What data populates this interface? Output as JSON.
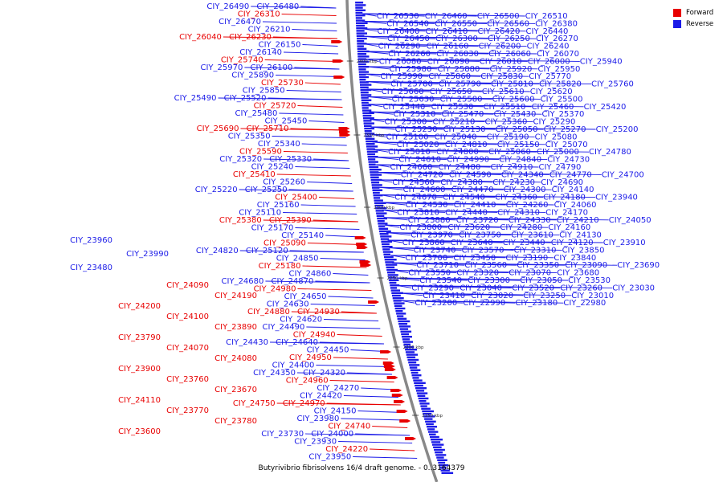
{
  "caption": "Butyrivibrio fibrisolvens 16/4 draft genome. - 0..3164379",
  "legend": {
    "forward_label": "Forward",
    "reverse_label": "Reverse"
  },
  "colors": {
    "forward": "#e80000",
    "reverse": "#1a1ae8",
    "backbone": "#888888"
  },
  "scale_marks": [
    "2400 kbp",
    "2350 kbp",
    "2300 kbp",
    "2250 kbp",
    "2200 kbp",
    "2150 kbp"
  ],
  "forward_labels": [
    "CIY_26310",
    "CIY_26230",
    "CIY_26040",
    "CIY_25740",
    "CIY_25730",
    "CIY_25720",
    "CIY_25710",
    "CIY_25690",
    "CIY_25590",
    "CIY_25410",
    "CIY_25400",
    "CIY_25390",
    "CIY_25380",
    "CIY_25090",
    "CIY_25180",
    "CIY_24980",
    "CIY_24930",
    "CIY_24880",
    "CIY_24940",
    "CIY_24950",
    "CIY_24960",
    "CIY_24970",
    "CIY_24750",
    "CIY_24740",
    "CIY_24220",
    "CIY_24090",
    "CIY_24190",
    "CIY_24200",
    "CIY_24100",
    "CIY_23890",
    "CIY_23790",
    "CIY_24070",
    "CIY_24080",
    "CIY_23900",
    "CIY_23760",
    "CIY_23670",
    "CIY_24110",
    "CIY_23770",
    "CIY_23780",
    "CIY_23600"
  ],
  "reverse_left_labels": [
    "CIY_26480",
    "CIY_26490",
    "CIY_26470",
    "CIY_26210",
    "CIY_26150",
    "CIY_26140",
    "CIY_26100",
    "CIY_25970",
    "CIY_25890",
    "CIY_25850",
    "CIY_25520",
    "CIY_25490",
    "CIY_25480",
    "CIY_25450",
    "CIY_25350",
    "CIY_25340",
    "CIY_25330",
    "CIY_25320",
    "CIY_25240",
    "CIY_25260",
    "CIY_25250",
    "CIY_25220",
    "CIY_25160",
    "CIY_25110",
    "CIY_25170",
    "CIY_25140",
    "CIY_25120",
    "CIY_24820",
    "CIY_24850",
    "CIY_24860",
    "CIY_24870",
    "CIY_24680",
    "CIY_24650",
    "CIY_24630",
    "CIY_24620",
    "CIY_24490",
    "CIY_24640",
    "CIY_24430",
    "CIY_24450",
    "CIY_24400",
    "CIY_24320",
    "CIY_24350",
    "CIY_24270",
    "CIY_24420",
    "CIY_24150",
    "CIY_23980",
    "CIY_24000",
    "CIY_23730",
    "CIY_23930",
    "CIY_23950",
    "CIY_23960",
    "CIY_23990",
    "CIY_23480"
  ],
  "reverse_right_labels": [
    "CIY_26530",
    "CIY_26460",
    "CIY_26500",
    "CIY_26510",
    "CIY_26540",
    "CIY_26550",
    "CIY_26560",
    "CIY_26380",
    "CIY_26400",
    "CIY_26410",
    "CIY_26420",
    "CIY_26440",
    "CIY_26450",
    "CIY_26300",
    "CIY_26250",
    "CIY_26270",
    "CIY_26290",
    "CIY_26160",
    "CIY_26200",
    "CIY_26240",
    "CIY_26260",
    "CIY_26030",
    "CIY_26060",
    "CIY_26070",
    "CIY_26080",
    "CIY_26090",
    "CIY_26010",
    "CIY_26000",
    "CIY_25940",
    "CIY_25980",
    "CIY_25880",
    "CIY_25920",
    "CIY_25950",
    "CIY_25990",
    "CIY_25860",
    "CIY_25830",
    "CIY_25770",
    "CIY_25780",
    "CIY_25790",
    "CIY_25810",
    "CIY_25820",
    "CIY_25760",
    "CIY_25660",
    "CIY_25650",
    "CIY_25610",
    "CIY_25620",
    "CIY_25630",
    "CIY_25580",
    "CIY_25600",
    "CIY_25500",
    "CIY_25440",
    "CIY_25530",
    "CIY_25510",
    "CIY_25460",
    "CIY_25420",
    "CIY_25310",
    "CIY_25470",
    "CIY_25430",
    "CIY_25370",
    "CIY_25300",
    "CIY_25210",
    "CIY_25360",
    "CIY_25290",
    "CIY_25230",
    "CIY_25130",
    "CIY_25050",
    "CIY_25270",
    "CIY_25200",
    "CIY_25100",
    "CIY_25040",
    "CIY_25190",
    "CIY_25080",
    "CIY_25020",
    "CIY_24810",
    "CIY_25150",
    "CIY_25070",
    "CIY_25010",
    "CIY_24800",
    "CIY_25060",
    "CIY_25000",
    "CIY_24780",
    "CIY_24610",
    "CIY_24990",
    "CIY_24840",
    "CIY_24730",
    "CIY_24660",
    "CIY_24480",
    "CIY_24910",
    "CIY_24790",
    "CIY_24720",
    "CIY_24590",
    "CIY_24340",
    "CIY_24770",
    "CIY_24700",
    "CIY_24560",
    "CIY_24380",
    "CIY_24230",
    "CIY_24690",
    "CIY_24600",
    "CIY_24470",
    "CIY_24300",
    "CIY_24140",
    "CIY_24670",
    "CIY_24540",
    "CIY_24360",
    "CIY_24180",
    "CIY_23940",
    "CIY_24530",
    "CIY_24410",
    "CIY_24260",
    "CIY_24060",
    "CIY_23810",
    "CIY_24440",
    "CIY_24310",
    "CIY_24170",
    "CIY_23880",
    "CIY_23720",
    "CIY_24330",
    "CIY_24210",
    "CIY_24050",
    "CIY_23800",
    "CIY_23620",
    "CIY_24280",
    "CIY_24160",
    "CIY_23970",
    "CIY_23750",
    "CIY_23610",
    "CIY_24130",
    "CIY_23860",
    "CIY_23640",
    "CIY_23440",
    "CIY_24120",
    "CIY_23910",
    "CIY_23740",
    "CIY_23570",
    "CIY_23310",
    "CIY_23850",
    "CIY_23700",
    "CIY_23450",
    "CIY_23190",
    "CIY_23840",
    "CIY_23710",
    "CIY_23560",
    "CIY_23350",
    "CIY_23090",
    "CIY_23690",
    "CIY_23550",
    "CIY_23320",
    "CIY_23070",
    "CIY_23680",
    "CIY_23540",
    "CIY_23300",
    "CIY_23050",
    "CIY_23530",
    "CIY_23290",
    "CIY_23040",
    "CIY_23520",
    "CIY_23260",
    "CIY_23030",
    "CIY_23410",
    "CIY_23020",
    "CIY_23250",
    "CIY_23010",
    "CIY_23200",
    "CIY_22990",
    "CIY_23180",
    "CIY_22980"
  ]
}
